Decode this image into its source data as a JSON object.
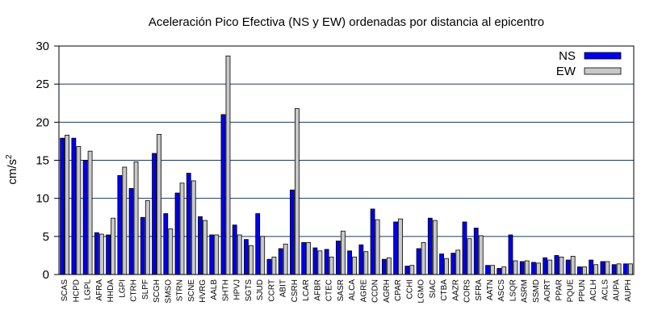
{
  "chart_data": {
    "type": "bar",
    "title": "Aceleración Pico Efectiva (NS y EW) ordenadas por distancia al epicentro",
    "xlabel": "",
    "ylabel": "cm/s",
    "ylabel_superscript": "2",
    "ylim": [
      0,
      30
    ],
    "yticks": [
      "0",
      "5",
      "10",
      "15",
      "20",
      "25",
      "30"
    ],
    "grid": "horizontal",
    "legend_position": "top-right",
    "categories": [
      "SCAS",
      "HCPD",
      "LGPL",
      "AFRA",
      "HHDA",
      "LGPI",
      "CTRH",
      "SLPF",
      "SCGH",
      "SMSO",
      "STRN",
      "SCNE",
      "HVRG",
      "AALB",
      "SHTH",
      "HPVJ",
      "SGTS",
      "SJUD",
      "CCRT",
      "ABIT",
      "CSRH",
      "LCAR",
      "AFBR",
      "CTEC",
      "SASR",
      "ALCA",
      "AGRE",
      "CCDN",
      "AGRH",
      "CPAR",
      "CCHI",
      "LGMO",
      "SIAC",
      "CTBA",
      "AAZR",
      "CORS",
      "SFRA",
      "AATN",
      "ASCS",
      "LSQR",
      "ASRM",
      "SSMD",
      "AORT",
      "PPAR",
      "PQUE",
      "PPUN",
      "ACLH",
      "ACLS",
      "AUPA",
      "AUPH"
    ],
    "series": [
      {
        "name": "NS",
        "color": "#0000ee",
        "values": [
          17.9,
          17.9,
          15.0,
          5.5,
          5.2,
          13.0,
          11.3,
          7.5,
          15.9,
          8.0,
          10.7,
          13.3,
          7.6,
          5.2,
          21.0,
          6.5,
          4.6,
          8.0,
          2.0,
          3.4,
          11.1,
          4.2,
          3.5,
          3.3,
          4.4,
          3.1,
          3.9,
          8.6,
          2.0,
          6.9,
          1.1,
          3.4,
          7.4,
          2.7,
          2.8,
          6.9,
          6.1,
          1.2,
          0.8,
          5.2,
          1.7,
          1.6,
          2.2,
          2.5,
          1.9,
          1.0,
          1.9,
          1.7,
          1.3,
          1.4
        ]
      },
      {
        "name": "EW",
        "color": "#c8c8c8",
        "values": [
          18.3,
          16.8,
          16.2,
          5.3,
          7.4,
          14.1,
          14.8,
          9.7,
          18.4,
          6.0,
          12.0,
          12.3,
          7.1,
          5.2,
          28.7,
          5.2,
          3.8,
          5.0,
          2.3,
          4.0,
          21.8,
          4.2,
          3.1,
          2.3,
          5.7,
          2.3,
          3.0,
          7.2,
          2.2,
          7.3,
          1.2,
          4.2,
          7.1,
          2.1,
          3.2,
          4.7,
          5.1,
          1.2,
          1.0,
          1.8,
          1.8,
          1.5,
          1.9,
          2.3,
          2.4,
          1.0,
          1.3,
          1.7,
          1.4,
          1.4
        ]
      }
    ]
  }
}
